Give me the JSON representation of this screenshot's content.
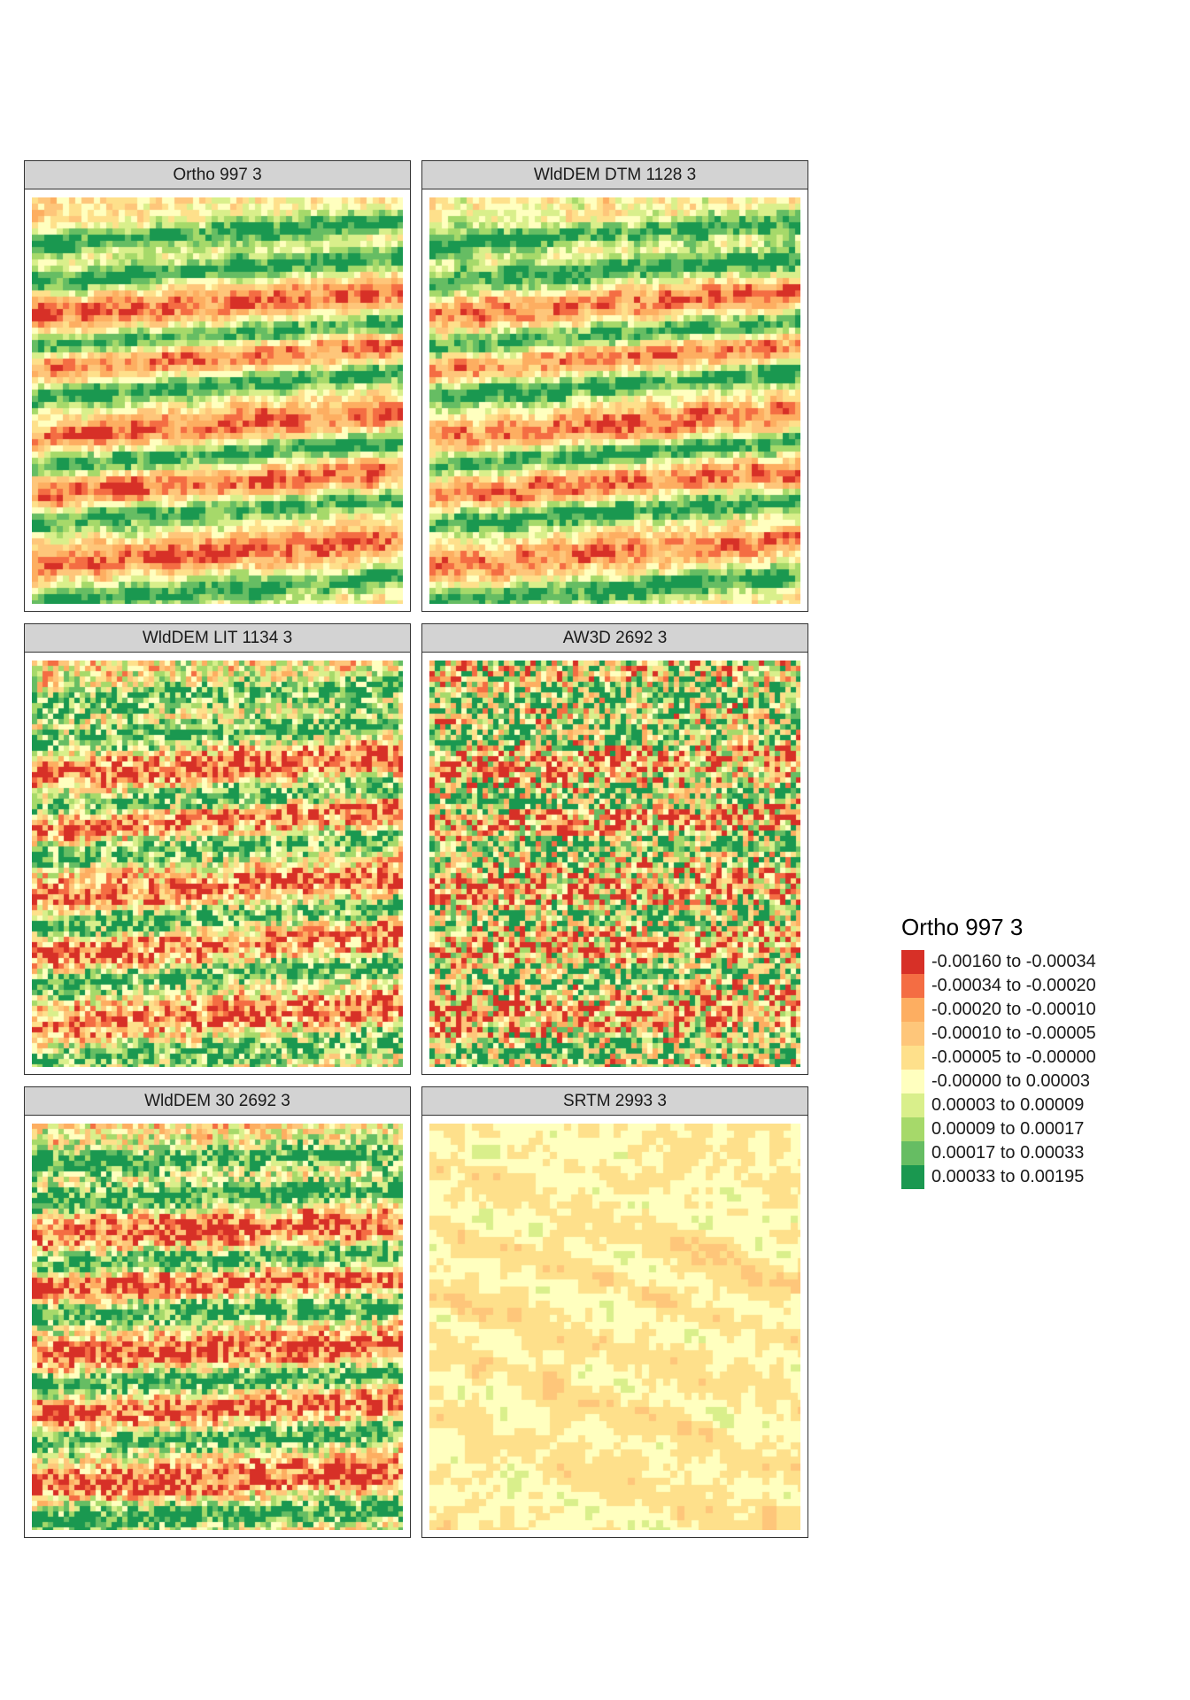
{
  "panels": [
    {
      "title": "Ortho 997 3",
      "style": "ortho"
    },
    {
      "title": "WldDEM DTM 1128 3",
      "style": "dtm"
    },
    {
      "title": "WldDEM LIT 1134 3",
      "style": "lit"
    },
    {
      "title": "AW3D 2692 3",
      "style": "aw3d"
    },
    {
      "title": "WldDEM 30 2692 3",
      "style": "wd30"
    },
    {
      "title": "SRTM 2993 3",
      "style": "srtm"
    }
  ],
  "legend": {
    "title": "Ortho 997 3",
    "classes": [
      {
        "label": "-0.00160 to -0.00034",
        "color": "#d73027"
      },
      {
        "label": "-0.00034 to -0.00020",
        "color": "#f46d43"
      },
      {
        "label": "-0.00020 to -0.00010",
        "color": "#fdae61"
      },
      {
        "label": "-0.00010 to -0.00005",
        "color": "#fec67a"
      },
      {
        "label": "-0.00005 to -0.00000",
        "color": "#fee08b"
      },
      {
        "label": "-0.00000 to 0.00003",
        "color": "#ffffbf"
      },
      {
        "label": "0.00003 to 0.00009",
        "color": "#d9ef8b"
      },
      {
        "label": "0.00009 to 0.00017",
        "color": "#a6d96a"
      },
      {
        "label": "0.00017 to 0.00033",
        "color": "#66bd63"
      },
      {
        "label": "0.00033 to 0.00195",
        "color": "#1a9850"
      }
    ]
  }
}
